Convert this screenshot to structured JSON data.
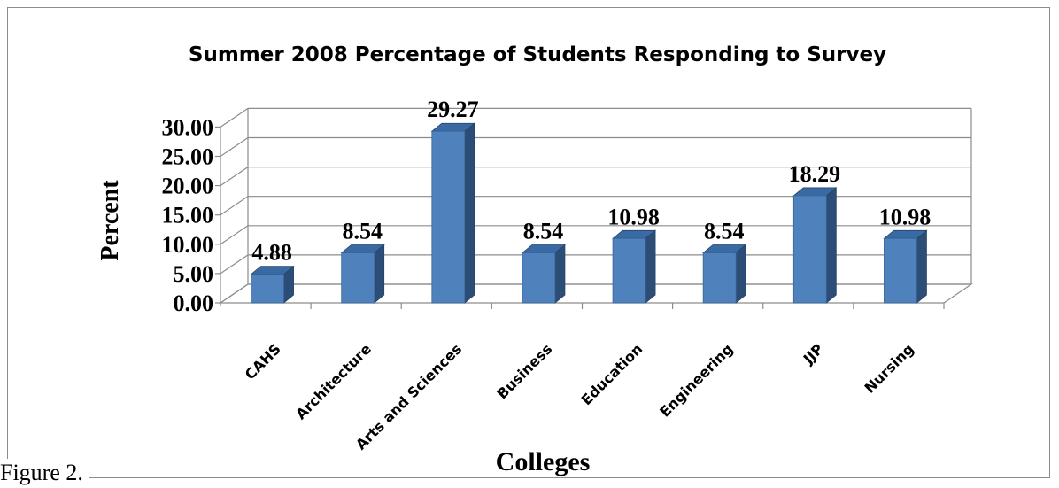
{
  "chart_data": {
    "type": "bar",
    "title": "Summer 2008 Percentage of Students Responding to Survey",
    "xlabel": "Colleges",
    "ylabel": "Percent",
    "categories": [
      "CAHS",
      "Architecture",
      "Arts and Sciences",
      "Business",
      "Education",
      "Engineering",
      "JJP",
      "Nursing"
    ],
    "values": [
      4.88,
      8.54,
      29.27,
      8.54,
      10.98,
      8.54,
      18.29,
      10.98
    ],
    "value_labels": [
      "4.88",
      "8.54",
      "29.27",
      "8.54",
      "10.98",
      "8.54",
      "18.29",
      "10.98"
    ],
    "yticks": [
      "0.00",
      "5.00",
      "10.00",
      "15.00",
      "20.00",
      "25.00",
      "30.00"
    ],
    "ylim": [
      0,
      30
    ],
    "grid": true,
    "legend": "none",
    "style": "3d-column",
    "colors": {
      "bar_front": "#4f81bd",
      "bar_side": "#2c4d75",
      "bar_top": "#3a6aa3",
      "grid": "#8c8c8c"
    }
  },
  "caption": "Figure 2."
}
